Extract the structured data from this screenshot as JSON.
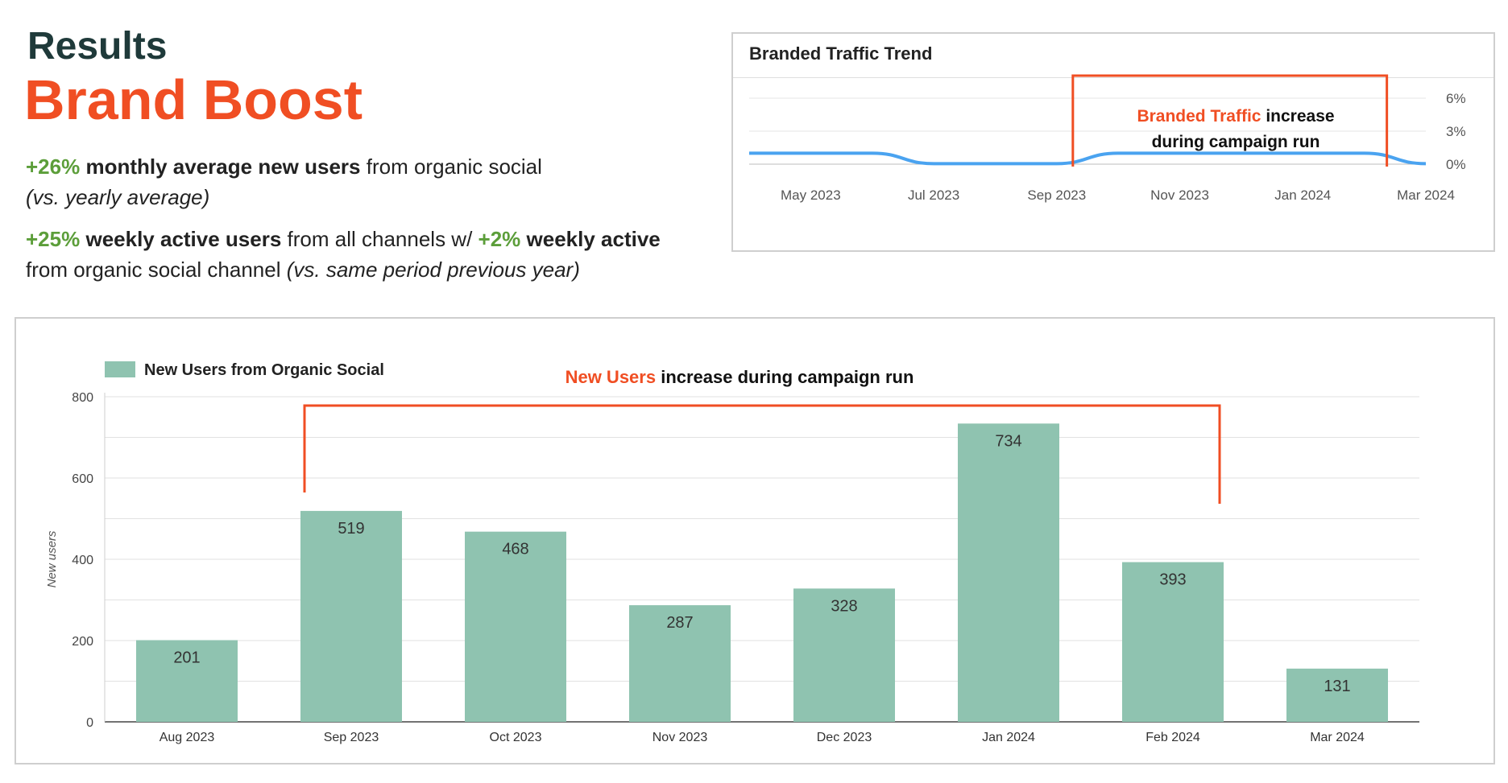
{
  "header": {
    "eyebrow": "Results",
    "title": "Brand Boost",
    "colors": {
      "eyebrow": "#1f3a3a",
      "accent": "#f04e23",
      "positive": "#5c9e3a"
    }
  },
  "stats": {
    "stat1": {
      "pct": "+26%",
      "bold": "monthly average new users",
      "rest": " from organic social",
      "note": "(vs. yearly average)"
    },
    "stat2": {
      "pct1": "+25%",
      "bold1": "weekly active users",
      "mid": " from all channels w/ ",
      "pct2": "+2%",
      "bold2": "weekly active",
      "rest": "from organic social channel ",
      "note": "(vs. same period previous year)"
    }
  },
  "trend_panel": {
    "title": "Branded Traffic Trend",
    "annotation_highlight": "Branded Traffic",
    "annotation_rest_1": " increase",
    "annotation_rest_2": "during campaign run"
  },
  "bar_panel": {
    "annotation_highlight": "New Users",
    "annotation_rest": " increase during campaign run"
  },
  "chart_data": [
    {
      "type": "line",
      "title": "Branded Traffic Trend",
      "x_tick_labels": [
        "May 2023",
        "Jul 2023",
        "Sep 2023",
        "Nov 2023",
        "Jan 2024",
        "Mar 2024"
      ],
      "y_tick_labels": [
        "0%",
        "3%",
        "6%"
      ],
      "ylim": [
        0,
        6
      ],
      "grid": true,
      "line_color": "#4aa3f0",
      "points": [
        {
          "x": "2023-04",
          "y": 1.0
        },
        {
          "x": "2023-05",
          "y": 1.0
        },
        {
          "x": "2023-06",
          "y": 1.0
        },
        {
          "x": "2023-07",
          "y": 0.05
        },
        {
          "x": "2023-08",
          "y": 0.05
        },
        {
          "x": "2023-09",
          "y": 0.05
        },
        {
          "x": "2023-10",
          "y": 1.0
        },
        {
          "x": "2023-11",
          "y": 1.0
        },
        {
          "x": "2023-12",
          "y": 1.0
        },
        {
          "x": "2024-01",
          "y": 1.0
        },
        {
          "x": "2024-02",
          "y": 1.0
        },
        {
          "x": "2024-03",
          "y": 0.05
        }
      ]
    },
    {
      "type": "bar",
      "legend": "New Users from Organic Social",
      "legend_position": "top-left",
      "ylabel": "New users",
      "ylim": [
        0,
        800
      ],
      "y_ticks": [
        0,
        200,
        400,
        600,
        800
      ],
      "grid": true,
      "bar_color": "#8fc3b0",
      "categories": [
        "Aug 2023",
        "Sep 2023",
        "Oct 2023",
        "Nov 2023",
        "Dec 2023",
        "Jan 2024",
        "Feb 2024",
        "Mar 2024"
      ],
      "values": [
        201,
        519,
        468,
        287,
        328,
        734,
        393,
        131
      ]
    }
  ]
}
